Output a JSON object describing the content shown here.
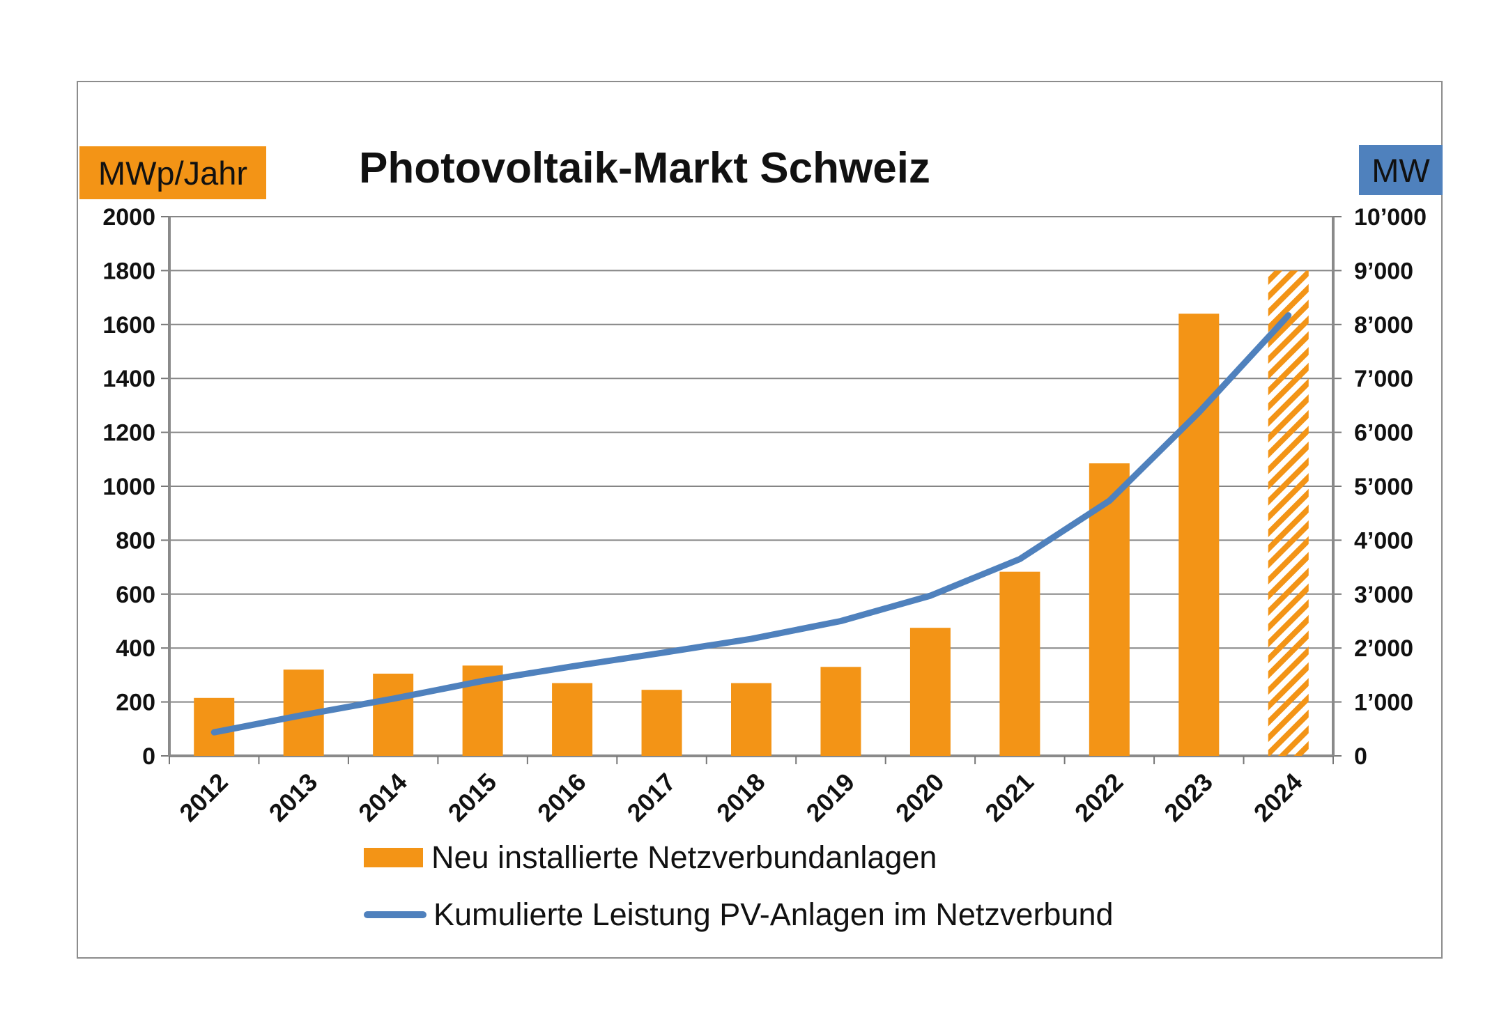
{
  "colors": {
    "bar": "#f39416",
    "line": "#4f81bd",
    "left_unit_bg": "#f39416",
    "right_unit_bg": "#4f81bd",
    "grid": "#858585"
  },
  "header": {
    "title": "Photovoltaik-Markt Schweiz",
    "unit_left": "MWp/Jahr",
    "unit_right": "MW"
  },
  "legend": {
    "bar_label": "Neu installierte Netzverbundanlagen",
    "line_label": "Kumulierte Leistung PV-Anlagen im Netzverbund"
  },
  "chart_data": {
    "type": "bar",
    "title": "Photovoltaik-Markt Schweiz",
    "categories": [
      "2012",
      "2013",
      "2014",
      "2015",
      "2016",
      "2017",
      "2018",
      "2019",
      "2020",
      "2021",
      "2022",
      "2023",
      "2024"
    ],
    "series": [
      {
        "name": "Neu installierte Netzverbundanlagen",
        "type": "bar",
        "axis": "left",
        "values": [
          215,
          320,
          305,
          335,
          270,
          245,
          270,
          330,
          475,
          683,
          1085,
          1640,
          1800
        ],
        "hatched": [
          false,
          false,
          false,
          false,
          false,
          false,
          false,
          false,
          false,
          false,
          false,
          false,
          true
        ]
      },
      {
        "name": "Kumulierte Leistung PV-Anlagen im Netzverbund",
        "type": "line",
        "axis": "right",
        "values": [
          437,
          760,
          1060,
          1390,
          1660,
          1910,
          2170,
          2500,
          2970,
          3650,
          4730,
          6370,
          8170
        ]
      }
    ],
    "y_left": {
      "label": "MWp/Jahr",
      "min": 0,
      "max": 2000,
      "ticks": [
        "0",
        "200",
        "400",
        "600",
        "800",
        "1000",
        "1200",
        "1400",
        "1600",
        "1800",
        "2000"
      ]
    },
    "y_right": {
      "label": "MW",
      "min": 0,
      "max": 10000,
      "ticks": [
        "0",
        "1’000",
        "2’000",
        "3’000",
        "4’000",
        "5’000",
        "6’000",
        "7’000",
        "8’000",
        "9’000",
        "10’000"
      ]
    },
    "grid": true,
    "legend_position": "bottom"
  }
}
